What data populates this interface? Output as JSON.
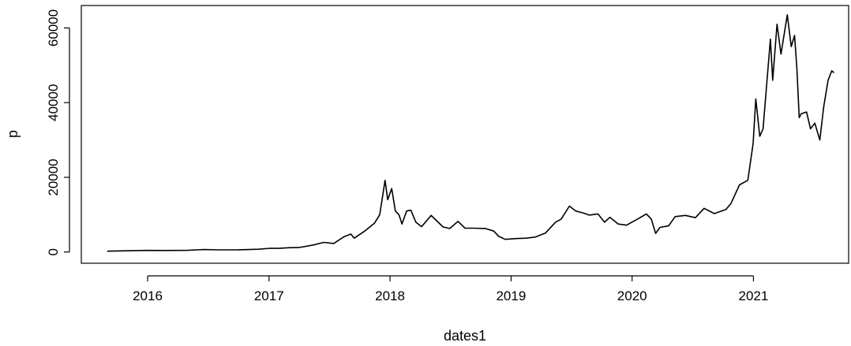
{
  "chart_data": {
    "type": "line",
    "xlabel": "dates1",
    "ylabel": "p",
    "xlim": [
      "2015-06-15",
      "2021-10-15"
    ],
    "ylim": [
      -3000,
      66000
    ],
    "x_ticks": [
      {
        "date": "2016-01-01",
        "label": "2016"
      },
      {
        "date": "2017-01-01",
        "label": "2017"
      },
      {
        "date": "2018-01-01",
        "label": "2018"
      },
      {
        "date": "2019-01-01",
        "label": "2019"
      },
      {
        "date": "2020-01-01",
        "label": "2020"
      },
      {
        "date": "2021-01-01",
        "label": "2021"
      }
    ],
    "y_ticks": [
      {
        "value": 0,
        "label": "0"
      },
      {
        "value": 20000,
        "label": "20000"
      },
      {
        "value": 40000,
        "label": "40000"
      },
      {
        "value": 60000,
        "label": "60000"
      }
    ],
    "grid": false,
    "line_color": "#000000",
    "series": [
      {
        "x": [
          "2015-09-01",
          "2015-11-01",
          "2016-01-01",
          "2016-03-01",
          "2016-05-01",
          "2016-06-18",
          "2016-08-01",
          "2016-10-01",
          "2016-12-01",
          "2017-01-05",
          "2017-02-01",
          "2017-03-01",
          "2017-04-01",
          "2017-05-15",
          "2017-06-15",
          "2017-07-15",
          "2017-08-15",
          "2017-09-05",
          "2017-09-15",
          "2017-10-15",
          "2017-11-15",
          "2017-12-01",
          "2017-12-17",
          "2017-12-25",
          "2018-01-06",
          "2018-01-17",
          "2018-01-28",
          "2018-02-06",
          "2018-02-20",
          "2018-03-05",
          "2018-03-20",
          "2018-04-06",
          "2018-05-05",
          "2018-05-20",
          "2018-06-10",
          "2018-06-30",
          "2018-07-25",
          "2018-08-15",
          "2018-09-10",
          "2018-10-15",
          "2018-11-10",
          "2018-11-25",
          "2018-12-15",
          "2019-01-15",
          "2019-02-15",
          "2019-03-15",
          "2019-04-15",
          "2019-05-15",
          "2019-06-01",
          "2019-06-26",
          "2019-07-15",
          "2019-08-05",
          "2019-08-25",
          "2019-09-20",
          "2019-10-10",
          "2019-10-26",
          "2019-11-20",
          "2019-12-15",
          "2020-01-15",
          "2020-02-13",
          "2020-02-28",
          "2020-03-12",
          "2020-03-25",
          "2020-04-20",
          "2020-05-10",
          "2020-06-10",
          "2020-07-10",
          "2020-08-05",
          "2020-09-05",
          "2020-10-10",
          "2020-10-25",
          "2020-11-20",
          "2020-12-15",
          "2020-12-31",
          "2021-01-08",
          "2021-01-20",
          "2021-01-30",
          "2021-02-21",
          "2021-02-28",
          "2021-03-13",
          "2021-03-25",
          "2021-04-13",
          "2021-04-25",
          "2021-05-05",
          "2021-05-12",
          "2021-05-19",
          "2021-05-25",
          "2021-06-10",
          "2021-06-22",
          "2021-07-05",
          "2021-07-20",
          "2021-08-01",
          "2021-08-14",
          "2021-08-25",
          "2021-09-01"
        ],
        "values": [
          230,
          330,
          430,
          420,
          450,
          680,
          590,
          610,
          750,
          1000,
          980,
          1150,
          1200,
          1900,
          2600,
          2300,
          4100,
          4800,
          3700,
          5500,
          7700,
          10000,
          19200,
          14000,
          17000,
          11000,
          10000,
          7500,
          11000,
          11200,
          8000,
          6800,
          9800,
          8500,
          6700,
          6300,
          8200,
          6400,
          6400,
          6300,
          5600,
          4200,
          3400,
          3600,
          3700,
          4000,
          5100,
          8000,
          8800,
          12300,
          11000,
          10500,
          9900,
          10200,
          8000,
          9300,
          7500,
          7200,
          8700,
          10200,
          8800,
          5000,
          6600,
          7000,
          9500,
          9800,
          9200,
          11700,
          10300,
          11400,
          13000,
          18000,
          19200,
          29000,
          41000,
          31000,
          33000,
          57000,
          46000,
          61000,
          53000,
          63500,
          55000,
          58000,
          49000,
          36000,
          37000,
          37500,
          33000,
          34500,
          30000,
          39000,
          46000,
          48500,
          48000
        ]
      }
    ]
  }
}
